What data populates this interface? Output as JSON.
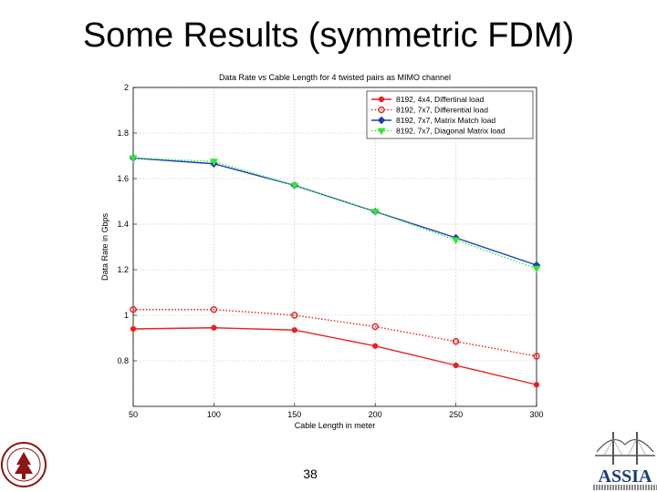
{
  "slide": {
    "title": "Some Results (symmetric FDM)",
    "page_number": "38",
    "logo_right_text": "ASSIA"
  },
  "colors": {
    "red": "#e8201e",
    "blue": "#1f3fb8",
    "green": "#33e833",
    "grid": "#b8b8b8",
    "stanford_red": "#8c1515"
  },
  "chart_data": {
    "type": "line",
    "title": "Data Rate vs Cable Length for 4 twisted pairs as MIMO channel",
    "xlabel": "Cable Length in meter",
    "ylabel": "Data Rate in Gbps",
    "xlim": [
      50,
      300
    ],
    "ylim": [
      0.6,
      2
    ],
    "x_ticks": [
      50,
      100,
      150,
      200,
      250,
      300
    ],
    "y_ticks": [
      0.8,
      1,
      1.2,
      1.4,
      1.6,
      1.8,
      2
    ],
    "y_tick_labels": [
      "0.8",
      "1",
      "1.2",
      "1.4",
      "1.6",
      "1.8",
      "2"
    ],
    "grid": true,
    "legend_position": "top-right",
    "x": [
      50,
      100,
      150,
      200,
      250,
      300
    ],
    "series": [
      {
        "name": "8192, 4x4, Differtinal load",
        "values": [
          0.94,
          0.945,
          0.935,
          0.865,
          0.78,
          0.695
        ],
        "color": "#e8201e",
        "line": "solid",
        "marker": "dot"
      },
      {
        "name": "8192, 7x7, Differential load",
        "values": [
          1.025,
          1.025,
          1.0,
          0.95,
          0.885,
          0.82
        ],
        "color": "#e8201e",
        "line": "dotted",
        "marker": "circle"
      },
      {
        "name": "8192, 7x7, Matrix Match load",
        "values": [
          1.69,
          1.665,
          1.57,
          1.455,
          1.34,
          1.22
        ],
        "color": "#1f3fb8",
        "line": "solid",
        "marker": "diamond"
      },
      {
        "name": "8192, 7x7, Diagonal Matrix load",
        "values": [
          1.69,
          1.675,
          1.57,
          1.455,
          1.33,
          1.205
        ],
        "color": "#33e833",
        "line": "dotted",
        "marker": "triangle-down"
      }
    ]
  }
}
